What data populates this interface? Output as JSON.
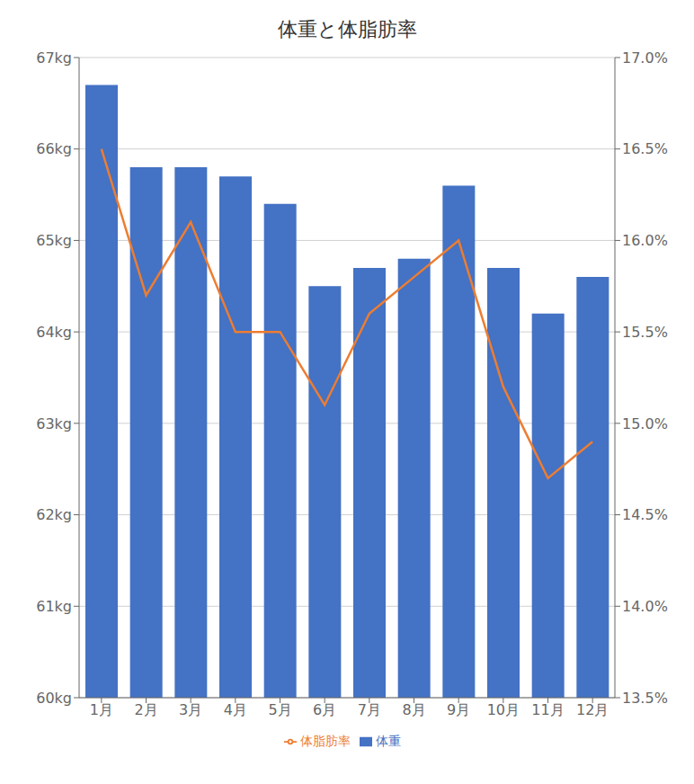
{
  "chart_data": {
    "type": "bar",
    "title": "体重と体脂肪率",
    "categories": [
      "1月",
      "2月",
      "3月",
      "4月",
      "5月",
      "6月",
      "7月",
      "8月",
      "9月",
      "10月",
      "11月",
      "12月"
    ],
    "series": [
      {
        "name": "体重",
        "type": "bar",
        "color": "#4472C4",
        "values": [
          66.7,
          65.8,
          65.8,
          65.7,
          65.4,
          64.5,
          64.7,
          64.8,
          65.6,
          64.7,
          64.2,
          64.6
        ]
      },
      {
        "name": "体脂肪率",
        "type": "line",
        "color": "#ED7D31",
        "axis": "y2",
        "marker": "none",
        "values": [
          16.5,
          15.7,
          16.1,
          15.5,
          15.5,
          15.1,
          15.6,
          15.8,
          16.0,
          15.2,
          14.7,
          14.9
        ]
      }
    ],
    "ylim": [
      60,
      67
    ],
    "yticks": [
      {
        "value": 60,
        "label": "60kg"
      },
      {
        "value": 61,
        "label": "61kg"
      },
      {
        "value": 62,
        "label": "62kg"
      },
      {
        "value": 63,
        "label": "63kg"
      },
      {
        "value": 64,
        "label": "64kg"
      },
      {
        "value": 65,
        "label": "65kg"
      },
      {
        "value": 66,
        "label": "66kg"
      },
      {
        "value": 67,
        "label": "67kg"
      }
    ],
    "y2lim": [
      13.5,
      17.0
    ],
    "y2ticks": [
      {
        "value": 13.5,
        "label": "13.5%"
      },
      {
        "value": 14.0,
        "label": "14.0%"
      },
      {
        "value": 14.5,
        "label": "14.5%"
      },
      {
        "value": 15.0,
        "label": "15.0%"
      },
      {
        "value": 15.5,
        "label": "15.5%"
      },
      {
        "value": 16.0,
        "label": "16.0%"
      },
      {
        "value": 16.5,
        "label": "16.5%"
      },
      {
        "value": 17.0,
        "label": "17.0%"
      }
    ],
    "grid": true,
    "legend": "bottom"
  }
}
